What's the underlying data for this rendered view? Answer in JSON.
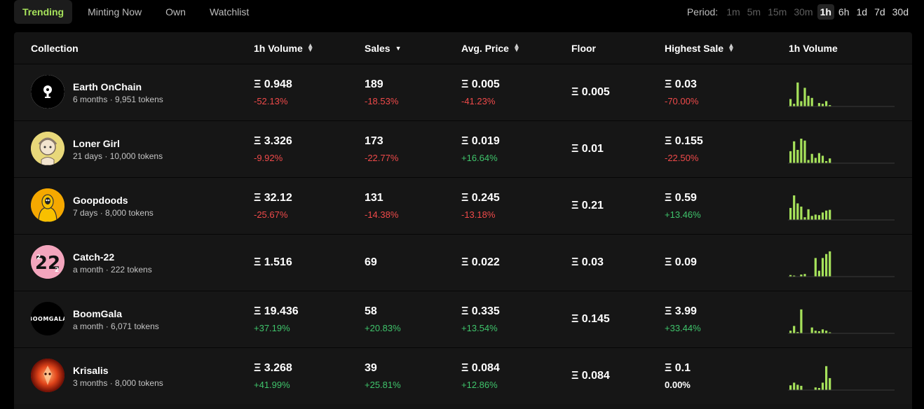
{
  "tabs": [
    {
      "label": "Trending",
      "active": true
    },
    {
      "label": "Minting Now",
      "active": false
    },
    {
      "label": "Own",
      "active": false
    },
    {
      "label": "Watchlist",
      "active": false
    }
  ],
  "period": {
    "label": "Period:",
    "options": [
      "1m",
      "5m",
      "15m",
      "30m",
      "1h",
      "6h",
      "1d",
      "7d",
      "30d"
    ],
    "selected": "1h"
  },
  "columns": {
    "collection": "Collection",
    "volume": "1h Volume",
    "sales": "Sales",
    "avg_price": "Avg. Price",
    "floor": "Floor",
    "highest_sale": "Highest Sale",
    "chart": "1h Volume"
  },
  "colors": {
    "accent": "#a6e25b",
    "negative": "#f04a4a",
    "positive": "#3fc46b",
    "bar": "#a6e25b"
  },
  "rows": [
    {
      "name": "Earth OnChain",
      "sub": "6 months · 9,951 tokens",
      "avatar": "earth-onchain",
      "avatar_bg": "#ffffff",
      "volume": "Ξ 0.948",
      "volume_chg": "-52.13%",
      "sales": "189",
      "sales_chg": "-18.53%",
      "avg": "Ξ 0.005",
      "avg_chg": "-41.23%",
      "floor": "Ξ 0.005",
      "high": "Ξ 0.03",
      "high_chg": "-70.00%",
      "bars": [
        0.28,
        0.1,
        0.9,
        0.2,
        0.7,
        0.4,
        0.32,
        0,
        0.13,
        0.1,
        0.2,
        0.05
      ]
    },
    {
      "name": "Loner Girl",
      "sub": "21 days · 10,000 tokens",
      "avatar": "loner-girl",
      "avatar_bg": "#e8d87a",
      "volume": "Ξ 3.326",
      "volume_chg": "-9.92%",
      "sales": "173",
      "sales_chg": "-22.77%",
      "avg": "Ξ 0.019",
      "avg_chg": "+16.64%",
      "floor": "Ξ 0.01",
      "high": "Ξ 0.155",
      "high_chg": "-22.50%",
      "bars": [
        0.45,
        0.82,
        0.5,
        0.92,
        0.85,
        0.12,
        0.35,
        0.2,
        0.38,
        0.28,
        0.08,
        0.18
      ]
    },
    {
      "name": "Goopdoods",
      "sub": "7 days · 8,000 tokens",
      "avatar": "goopdoods",
      "avatar_bg": "#f5a800",
      "volume": "Ξ 32.12",
      "volume_chg": "-25.67%",
      "sales": "131",
      "sales_chg": "-14.38%",
      "avg": "Ξ 0.245",
      "avg_chg": "-13.18%",
      "floor": "Ξ 0.21",
      "high": "Ξ 0.59",
      "high_chg": "+13.46%",
      "bars": [
        0.45,
        0.92,
        0.62,
        0.5,
        0.1,
        0.4,
        0.15,
        0.2,
        0.18,
        0.28,
        0.35,
        0.38
      ]
    },
    {
      "name": "Catch-22",
      "sub": "a month · 222 tokens",
      "avatar": "catch-22",
      "avatar_bg": "#f3a5bd",
      "volume": "Ξ 1.516",
      "volume_chg": "",
      "sales": "69",
      "sales_chg": "",
      "avg": "Ξ 0.022",
      "avg_chg": "",
      "floor": "Ξ 0.03",
      "high": "Ξ 0.09",
      "high_chg": "",
      "bars": [
        0.06,
        0.04,
        0,
        0.08,
        0.1,
        0,
        0,
        0.7,
        0.22,
        0.7,
        0.85,
        0.95
      ]
    },
    {
      "name": "BoomGala",
      "sub": "a month · 6,071 tokens",
      "avatar": "boomgala",
      "avatar_bg": "#000000",
      "avatar_text": "BOOMGALA",
      "volume": "Ξ 19.436",
      "volume_chg": "+37.19%",
      "sales": "58",
      "sales_chg": "+20.83%",
      "avg": "Ξ 0.335",
      "avg_chg": "+13.54%",
      "floor": "Ξ 0.145",
      "high": "Ξ 3.99",
      "high_chg": "+33.44%",
      "bars": [
        0.1,
        0.28,
        0.05,
        0.9,
        0,
        0,
        0.22,
        0.1,
        0.08,
        0.15,
        0.1,
        0.03
      ]
    },
    {
      "name": "Krisalis",
      "sub": "3 months · 8,000 tokens",
      "avatar": "krisalis",
      "avatar_bg": "#c42a10",
      "volume": "Ξ 3.268",
      "volume_chg": "+41.99%",
      "sales": "39",
      "sales_chg": "+25.81%",
      "avg": "Ξ 0.084",
      "avg_chg": "+12.86%",
      "floor": "Ξ 0.084",
      "high": "Ξ 0.1",
      "high_chg": "0.00%",
      "bars": [
        0.18,
        0.28,
        0.2,
        0.16,
        0,
        0,
        0,
        0.1,
        0.08,
        0.28,
        0.9,
        0.45
      ]
    }
  ]
}
